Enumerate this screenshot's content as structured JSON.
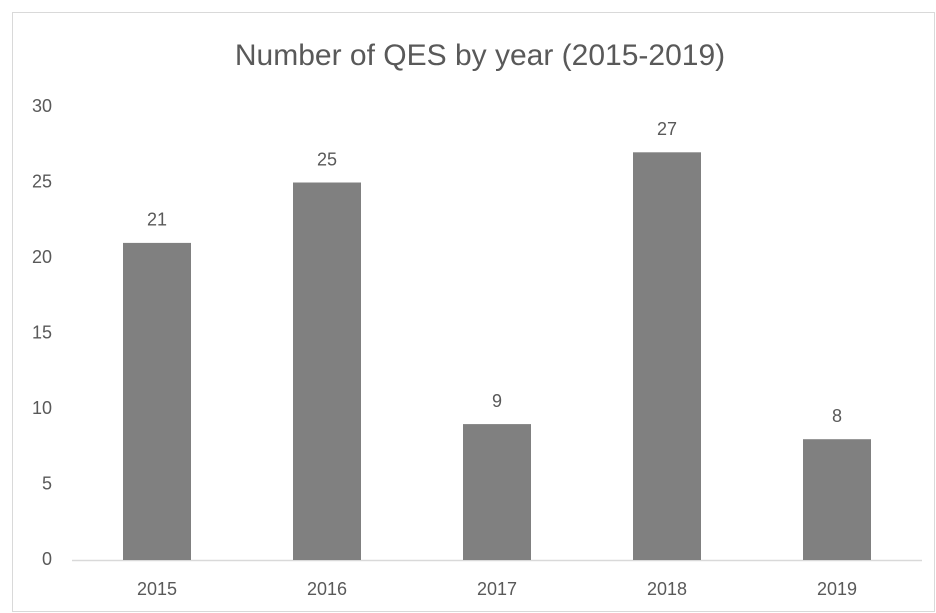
{
  "chart_data": {
    "type": "bar",
    "title": "Number of QES by year (2015-2019)",
    "categories": [
      "2015",
      "2016",
      "2017",
      "2018",
      "2019"
    ],
    "values": [
      21,
      25,
      9,
      27,
      8
    ],
    "color": "#808080",
    "ylim": [
      0,
      30
    ],
    "yticks": [
      0,
      5,
      10,
      15,
      20,
      25,
      30
    ],
    "grid": false
  }
}
